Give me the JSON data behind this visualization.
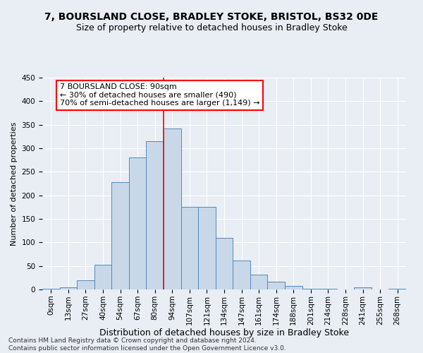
{
  "title1": "7, BOURSLAND CLOSE, BRADLEY STOKE, BRISTOL, BS32 0DE",
  "title2": "Size of property relative to detached houses in Bradley Stoke",
  "xlabel": "Distribution of detached houses by size in Bradley Stoke",
  "ylabel": "Number of detached properties",
  "categories": [
    "0sqm",
    "13sqm",
    "27sqm",
    "40sqm",
    "54sqm",
    "67sqm",
    "80sqm",
    "94sqm",
    "107sqm",
    "121sqm",
    "134sqm",
    "147sqm",
    "161sqm",
    "174sqm",
    "188sqm",
    "201sqm",
    "214sqm",
    "228sqm",
    "241sqm",
    "255sqm",
    "268sqm"
  ],
  "values": [
    2,
    5,
    20,
    53,
    228,
    280,
    315,
    342,
    176,
    176,
    110,
    62,
    31,
    16,
    8,
    2,
    2,
    0,
    5,
    0,
    2
  ],
  "bar_color": "#c8d8e8",
  "bar_edge_color": "#5588bb",
  "line_color": "red",
  "line_index": 7,
  "annotation_line1": "7 BOURSLAND CLOSE: 90sqm",
  "annotation_line2": "← 30% of detached houses are smaller (490)",
  "annotation_line3": "70% of semi-detached houses are larger (1,149) →",
  "annotation_box_color": "red",
  "annotation_fill": "white",
  "ylim": [
    0,
    450
  ],
  "yticks": [
    0,
    50,
    100,
    150,
    200,
    250,
    300,
    350,
    400,
    450
  ],
  "background_color": "#e8eef4",
  "footer1": "Contains HM Land Registry data © Crown copyright and database right 2024.",
  "footer2": "Contains public sector information licensed under the Open Government Licence v3.0.",
  "title1_fontsize": 10,
  "title2_fontsize": 9,
  "xlabel_fontsize": 9,
  "ylabel_fontsize": 8,
  "tick_fontsize": 7.5,
  "footer_fontsize": 6.5,
  "annotation_fontsize": 8
}
